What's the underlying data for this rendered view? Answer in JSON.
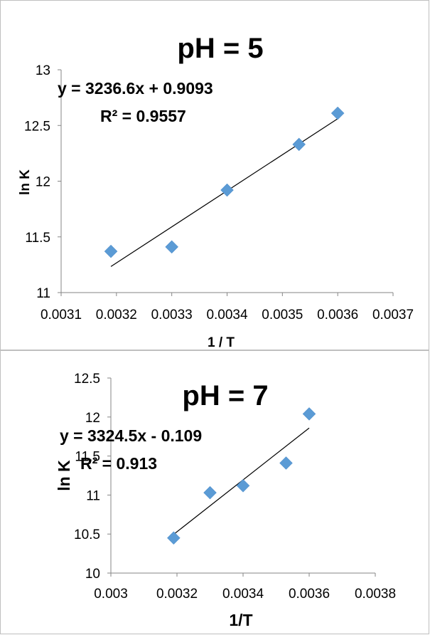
{
  "chart_data": [
    {
      "type": "scatter",
      "title": "pH = 5",
      "xlabel": "1 / T",
      "ylabel": "ln K",
      "xlim": [
        0.0031,
        0.0037
      ],
      "ylim": [
        11,
        13
      ],
      "xticks": [
        "0.0031",
        "0.0032",
        "0.0033",
        "0.0034",
        "0.0035",
        "0.0036",
        "0.0037"
      ],
      "yticks": [
        "11",
        "11.5",
        "12",
        "12.5",
        "13"
      ],
      "points": [
        {
          "x": 0.00319,
          "y": 11.37
        },
        {
          "x": 0.0033,
          "y": 11.41
        },
        {
          "x": 0.0034,
          "y": 11.92
        },
        {
          "x": 0.00353,
          "y": 12.33
        },
        {
          "x": 0.0036,
          "y": 12.61
        }
      ],
      "trendline": {
        "slope": 3236.6,
        "intercept": 0.9093,
        "x_range": [
          0.00319,
          0.0036
        ]
      },
      "equation": "y = 3236.6x + 0.9093",
      "r_squared": "R² = 0.9557",
      "grid": false,
      "marker_color": "#5b9bd5"
    },
    {
      "type": "scatter",
      "title": "pH = 7",
      "xlabel": "1/T",
      "ylabel": "ln K",
      "xlim": [
        0.003,
        0.0038
      ],
      "ylim": [
        10,
        12.5
      ],
      "xticks": [
        "0.003",
        "0.0032",
        "0.0034",
        "0.0036",
        "0.0038"
      ],
      "yticks": [
        "10",
        "10.5",
        "11",
        "11.5",
        "12",
        "12.5"
      ],
      "points": [
        {
          "x": 0.00319,
          "y": 10.45
        },
        {
          "x": 0.0033,
          "y": 11.03
        },
        {
          "x": 0.0034,
          "y": 11.12
        },
        {
          "x": 0.00353,
          "y": 11.41
        },
        {
          "x": 0.0036,
          "y": 12.04
        }
      ],
      "trendline": {
        "slope": 3324.5,
        "intercept": -0.109,
        "x_range": [
          0.00319,
          0.0036
        ]
      },
      "equation": "y = 3324.5x - 0.109",
      "r_squared": "R² = 0.913",
      "grid": false,
      "marker_color": "#5b9bd5"
    }
  ]
}
